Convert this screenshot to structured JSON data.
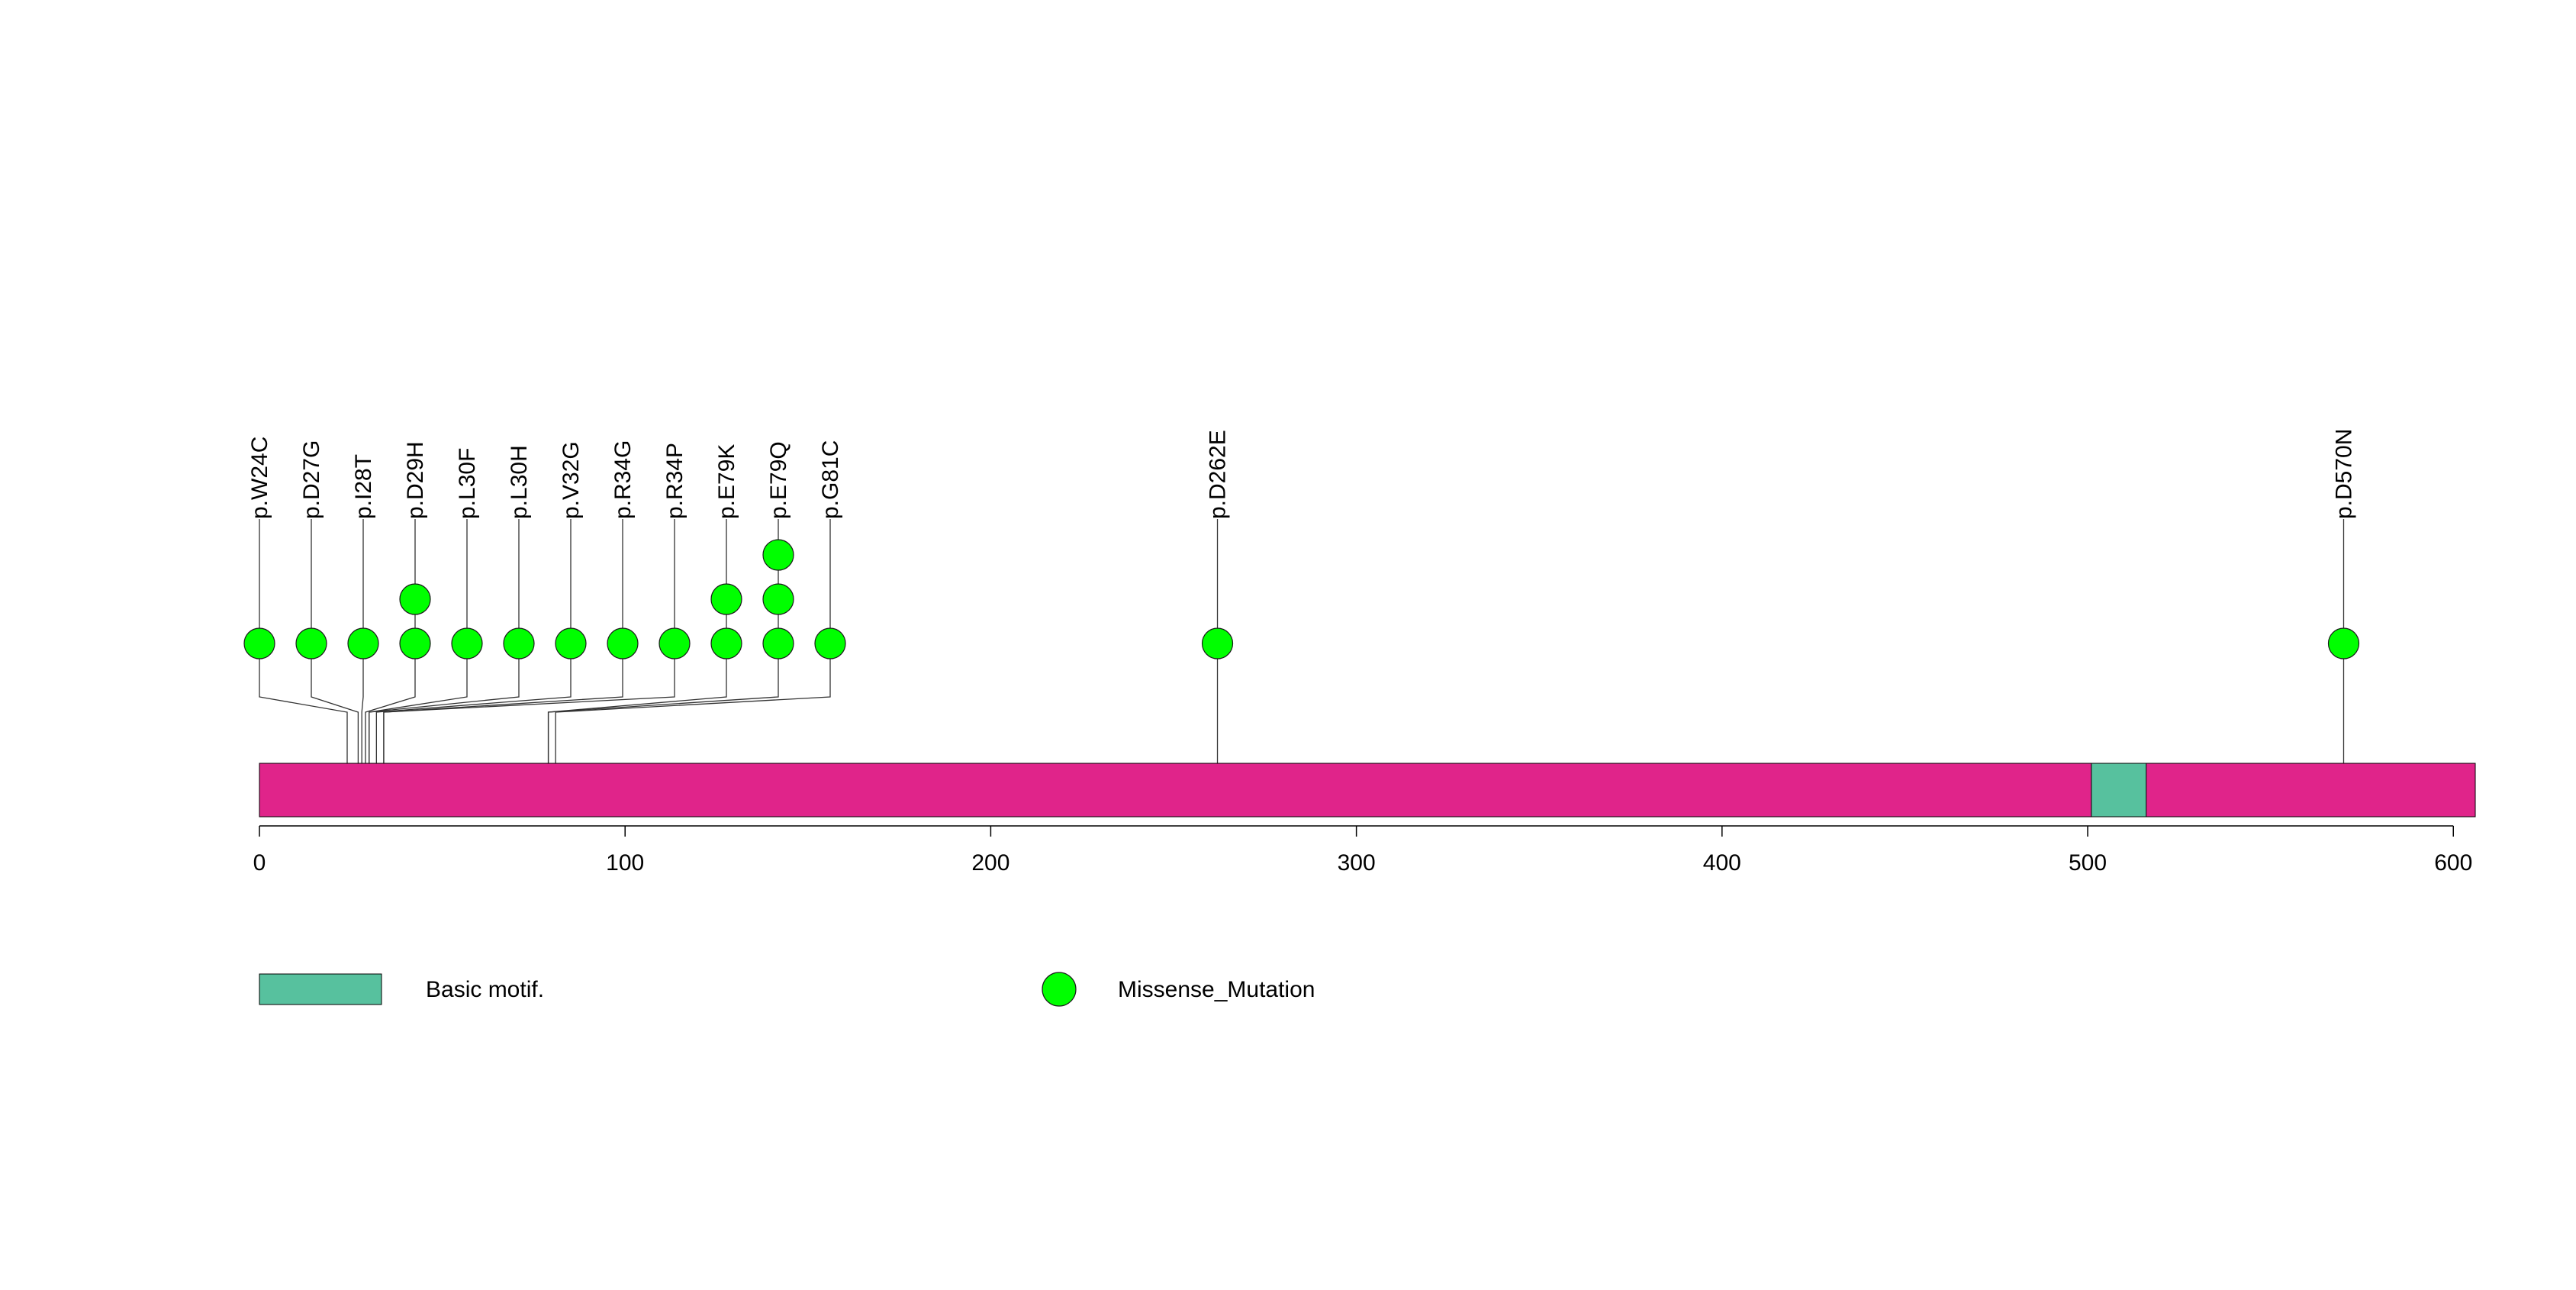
{
  "chart_data": {
    "type": "lollipop",
    "x_range": [
      0,
      606
    ],
    "protein_length": 606,
    "x_ticks": [
      0,
      100,
      200,
      300,
      400,
      500,
      600
    ],
    "protein_color": "#E0248A",
    "domains": [
      {
        "name": "Basic motif.",
        "start": 501,
        "end": 516,
        "color": "#57C19E"
      }
    ],
    "mutation_type": "Missense_Mutation",
    "mutation_color": "#00FF00",
    "mutations": [
      {
        "label": "p.W24C",
        "position": 24,
        "count": 1
      },
      {
        "label": "p.D27G",
        "position": 27,
        "count": 1
      },
      {
        "label": "p.I28T",
        "position": 28,
        "count": 1
      },
      {
        "label": "p.D29H",
        "position": 29,
        "count": 2
      },
      {
        "label": "p.L30F",
        "position": 30,
        "count": 1
      },
      {
        "label": "p.L30H",
        "position": 30,
        "count": 1
      },
      {
        "label": "p.V32G",
        "position": 32,
        "count": 1
      },
      {
        "label": "p.R34G",
        "position": 34,
        "count": 1
      },
      {
        "label": "p.R34P",
        "position": 34,
        "count": 1
      },
      {
        "label": "p.E79K",
        "position": 79,
        "count": 2
      },
      {
        "label": "p.E79Q",
        "position": 79,
        "count": 3
      },
      {
        "label": "p.G81C",
        "position": 81,
        "count": 1
      },
      {
        "label": "p.D262E",
        "position": 262,
        "count": 1
      },
      {
        "label": "p.D570N",
        "position": 570,
        "count": 1
      }
    ],
    "legend": [
      {
        "kind": "box",
        "label": "Basic motif.",
        "color": "#57C19E"
      },
      {
        "kind": "circle",
        "label": "Missense_Mutation",
        "color": "#00FF00"
      }
    ]
  }
}
